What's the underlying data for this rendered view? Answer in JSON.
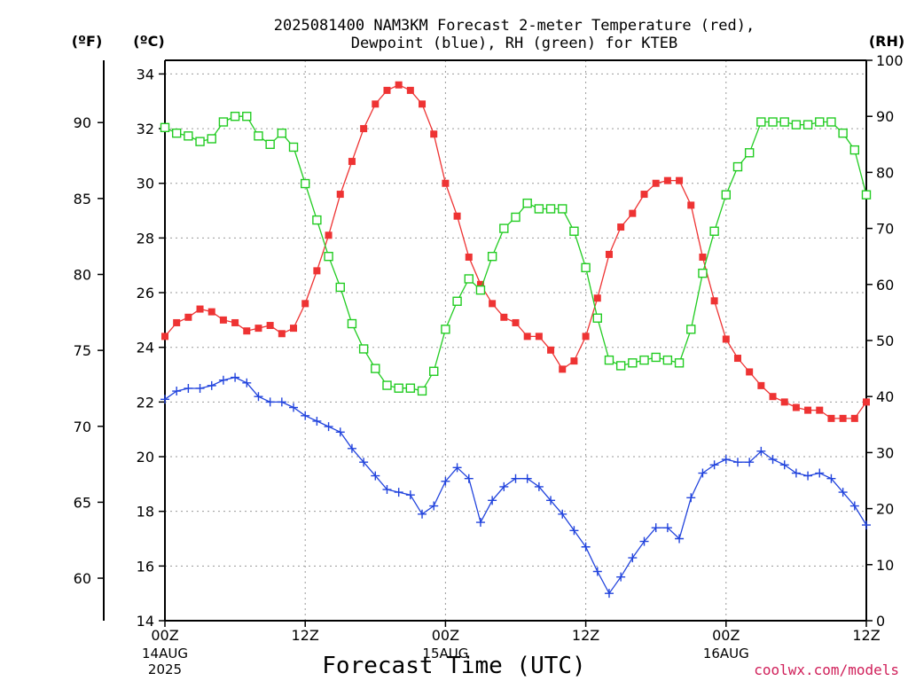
{
  "chart_data": {
    "type": "line",
    "title_lines": [
      "2025081400 NAM3KM Forecast 2-meter Temperature (red),",
      "Dewpoint (blue), RH (green) for KTEB"
    ],
    "xlabel": "Forecast Time (UTC)",
    "credit": "coolwx.com/models",
    "unit_f": "(ºF)",
    "unit_c": "(ºC)",
    "unit_rh": "(RH)",
    "x_ticks": [
      "00Z",
      "12Z",
      "00Z",
      "12Z",
      "00Z",
      "12Z"
    ],
    "date_labels": [
      {
        "tick": 0,
        "lines": [
          "14AUG",
          "2025"
        ]
      },
      {
        "tick": 2,
        "lines": [
          "15AUG"
        ]
      },
      {
        "tick": 4,
        "lines": [
          "16AUG"
        ]
      }
    ],
    "x_hours_range": [
      0,
      60
    ],
    "y_left_c": {
      "min": 14,
      "max": 34.5,
      "ticks": [
        14,
        16,
        18,
        20,
        22,
        24,
        26,
        28,
        30,
        32,
        34
      ]
    },
    "y_left_f_ticks": [
      60,
      65,
      70,
      75,
      80,
      85,
      90
    ],
    "y_right_rh": {
      "min": 0,
      "max": 100,
      "ticks": [
        0,
        10,
        20,
        30,
        40,
        50,
        60,
        70,
        80,
        90,
        100
      ]
    },
    "grid": true,
    "series": [
      {
        "name": "Temperature",
        "axis": "c",
        "color": "#ee3333",
        "marker": "filled-square",
        "x": [
          0,
          1,
          2,
          3,
          4,
          5,
          6,
          7,
          8,
          9,
          10,
          11,
          12,
          13,
          14,
          15,
          16,
          17,
          18,
          19,
          20,
          21,
          22,
          23,
          24,
          25,
          26,
          27,
          28,
          29,
          30,
          31,
          32,
          33,
          34,
          35,
          36,
          37,
          38,
          39,
          40,
          41,
          42,
          43,
          44,
          45,
          46,
          47,
          48,
          49,
          50,
          51,
          52,
          53,
          54,
          55,
          56,
          57,
          58,
          59,
          60
        ],
        "values": [
          24.4,
          24.9,
          25.1,
          25.4,
          25.3,
          25.0,
          24.9,
          24.6,
          24.7,
          24.8,
          24.5,
          24.7,
          25.6,
          26.8,
          28.1,
          29.6,
          30.8,
          32.0,
          32.9,
          33.4,
          33.6,
          33.4,
          32.9,
          31.8,
          30.0,
          28.8,
          27.3,
          26.3,
          25.6,
          25.1,
          24.9,
          24.4,
          24.4,
          23.9,
          23.2,
          23.5,
          24.4,
          25.8,
          27.4,
          28.4,
          28.9,
          29.6,
          30.0,
          30.1,
          30.1,
          29.2,
          27.3,
          25.7,
          24.3,
          23.6,
          23.1,
          22.6,
          22.2,
          22.0,
          21.8,
          21.7,
          21.7,
          21.4,
          21.4,
          21.4,
          22.0
        ]
      },
      {
        "name": "Dewpoint",
        "axis": "c",
        "color": "#2244dd",
        "marker": "plus",
        "x": [
          0,
          1,
          2,
          3,
          4,
          5,
          6,
          7,
          8,
          9,
          10,
          11,
          12,
          13,
          14,
          15,
          16,
          17,
          18,
          19,
          20,
          21,
          22,
          23,
          24,
          25,
          26,
          27,
          28,
          29,
          30,
          31,
          32,
          33,
          34,
          35,
          36,
          37,
          38,
          39,
          40,
          41,
          42,
          43,
          44,
          45,
          46,
          47,
          48,
          49,
          50,
          51,
          52,
          53,
          54,
          55,
          56,
          57,
          58,
          59,
          60
        ],
        "values": [
          22.1,
          22.4,
          22.5,
          22.5,
          22.6,
          22.8,
          22.9,
          22.7,
          22.2,
          22.0,
          22.0,
          21.8,
          21.5,
          21.3,
          21.1,
          20.9,
          20.3,
          19.8,
          19.3,
          18.8,
          18.7,
          18.6,
          17.9,
          18.2,
          19.1,
          19.6,
          19.2,
          17.6,
          18.4,
          18.9,
          19.2,
          19.2,
          18.9,
          18.4,
          17.9,
          17.3,
          16.7,
          15.8,
          15.0,
          15.6,
          16.3,
          16.9,
          17.4,
          17.4,
          17.0,
          18.5,
          19.4,
          19.7,
          19.9,
          19.8,
          19.8,
          20.2,
          19.9,
          19.7,
          19.4,
          19.3,
          19.4,
          19.2,
          18.7,
          18.2,
          17.5
        ]
      },
      {
        "name": "RH",
        "axis": "rh",
        "color": "#22cc22",
        "marker": "open-square",
        "x": [
          0,
          1,
          2,
          3,
          4,
          5,
          6,
          7,
          8,
          9,
          10,
          11,
          12,
          13,
          14,
          15,
          16,
          17,
          18,
          19,
          20,
          21,
          22,
          23,
          24,
          25,
          26,
          27,
          28,
          29,
          30,
          31,
          32,
          33,
          34,
          35,
          36,
          37,
          38,
          39,
          40,
          41,
          42,
          43,
          44,
          45,
          46,
          47,
          48,
          49,
          50,
          51,
          52,
          53,
          54,
          55,
          56,
          57,
          58,
          59,
          60
        ],
        "values": [
          88,
          87,
          86.5,
          85.5,
          86,
          89,
          90,
          90,
          86.5,
          85,
          87,
          84.5,
          78,
          71.5,
          65,
          59.5,
          53,
          48.5,
          45,
          42,
          41.5,
          41.5,
          41,
          44.5,
          52,
          57,
          61,
          59,
          65,
          70,
          72,
          74.5,
          73.5,
          73.5,
          73.5,
          69.5,
          63,
          54,
          46.5,
          45.5,
          46,
          46.5,
          47,
          46.5,
          46,
          52,
          62,
          69.5,
          76,
          81,
          83.5,
          89,
          89,
          89,
          88.5,
          88.5,
          89,
          89,
          87,
          84,
          76
        ]
      }
    ]
  }
}
